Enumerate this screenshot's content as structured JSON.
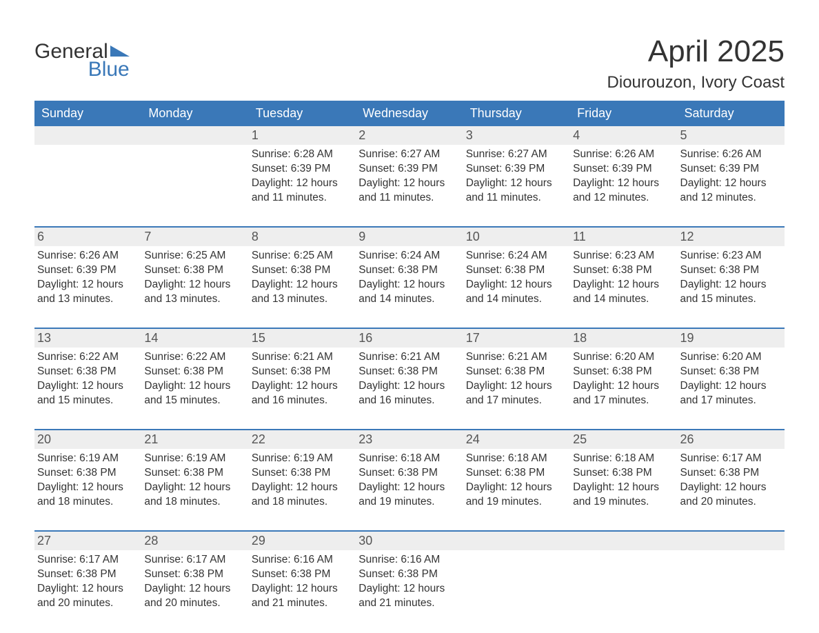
{
  "logo": {
    "text1": "General",
    "text2": "Blue"
  },
  "title": "April 2025",
  "subtitle": "Diourouzon, Ivory Coast",
  "colors": {
    "brand_blue": "#3a78b8",
    "header_text": "#ffffff",
    "daynum_bg": "#eeeeee",
    "body_text": "#333333",
    "daynum_text": "#555555",
    "background": "#ffffff"
  },
  "typography": {
    "title_fontsize": 44,
    "subtitle_fontsize": 24,
    "weekday_fontsize": 18,
    "daynum_fontsize": 18,
    "detail_fontsize": 15.5,
    "logo_fontsize": 30
  },
  "structure": {
    "type": "calendar",
    "columns": 7,
    "rows": 5
  },
  "weekdays": [
    "Sunday",
    "Monday",
    "Tuesday",
    "Wednesday",
    "Thursday",
    "Friday",
    "Saturday"
  ],
  "weeks": [
    {
      "days": [
        {
          "num": "",
          "sunrise": "",
          "sunset": "",
          "daylight": ""
        },
        {
          "num": "",
          "sunrise": "",
          "sunset": "",
          "daylight": ""
        },
        {
          "num": "1",
          "sunrise": "Sunrise: 6:28 AM",
          "sunset": "Sunset: 6:39 PM",
          "daylight": "Daylight: 12 hours and 11 minutes."
        },
        {
          "num": "2",
          "sunrise": "Sunrise: 6:27 AM",
          "sunset": "Sunset: 6:39 PM",
          "daylight": "Daylight: 12 hours and 11 minutes."
        },
        {
          "num": "3",
          "sunrise": "Sunrise: 6:27 AM",
          "sunset": "Sunset: 6:39 PM",
          "daylight": "Daylight: 12 hours and 11 minutes."
        },
        {
          "num": "4",
          "sunrise": "Sunrise: 6:26 AM",
          "sunset": "Sunset: 6:39 PM",
          "daylight": "Daylight: 12 hours and 12 minutes."
        },
        {
          "num": "5",
          "sunrise": "Sunrise: 6:26 AM",
          "sunset": "Sunset: 6:39 PM",
          "daylight": "Daylight: 12 hours and 12 minutes."
        }
      ]
    },
    {
      "days": [
        {
          "num": "6",
          "sunrise": "Sunrise: 6:26 AM",
          "sunset": "Sunset: 6:39 PM",
          "daylight": "Daylight: 12 hours and 13 minutes."
        },
        {
          "num": "7",
          "sunrise": "Sunrise: 6:25 AM",
          "sunset": "Sunset: 6:38 PM",
          "daylight": "Daylight: 12 hours and 13 minutes."
        },
        {
          "num": "8",
          "sunrise": "Sunrise: 6:25 AM",
          "sunset": "Sunset: 6:38 PM",
          "daylight": "Daylight: 12 hours and 13 minutes."
        },
        {
          "num": "9",
          "sunrise": "Sunrise: 6:24 AM",
          "sunset": "Sunset: 6:38 PM",
          "daylight": "Daylight: 12 hours and 14 minutes."
        },
        {
          "num": "10",
          "sunrise": "Sunrise: 6:24 AM",
          "sunset": "Sunset: 6:38 PM",
          "daylight": "Daylight: 12 hours and 14 minutes."
        },
        {
          "num": "11",
          "sunrise": "Sunrise: 6:23 AM",
          "sunset": "Sunset: 6:38 PM",
          "daylight": "Daylight: 12 hours and 14 minutes."
        },
        {
          "num": "12",
          "sunrise": "Sunrise: 6:23 AM",
          "sunset": "Sunset: 6:38 PM",
          "daylight": "Daylight: 12 hours and 15 minutes."
        }
      ]
    },
    {
      "days": [
        {
          "num": "13",
          "sunrise": "Sunrise: 6:22 AM",
          "sunset": "Sunset: 6:38 PM",
          "daylight": "Daylight: 12 hours and 15 minutes."
        },
        {
          "num": "14",
          "sunrise": "Sunrise: 6:22 AM",
          "sunset": "Sunset: 6:38 PM",
          "daylight": "Daylight: 12 hours and 15 minutes."
        },
        {
          "num": "15",
          "sunrise": "Sunrise: 6:21 AM",
          "sunset": "Sunset: 6:38 PM",
          "daylight": "Daylight: 12 hours and 16 minutes."
        },
        {
          "num": "16",
          "sunrise": "Sunrise: 6:21 AM",
          "sunset": "Sunset: 6:38 PM",
          "daylight": "Daylight: 12 hours and 16 minutes."
        },
        {
          "num": "17",
          "sunrise": "Sunrise: 6:21 AM",
          "sunset": "Sunset: 6:38 PM",
          "daylight": "Daylight: 12 hours and 17 minutes."
        },
        {
          "num": "18",
          "sunrise": "Sunrise: 6:20 AM",
          "sunset": "Sunset: 6:38 PM",
          "daylight": "Daylight: 12 hours and 17 minutes."
        },
        {
          "num": "19",
          "sunrise": "Sunrise: 6:20 AM",
          "sunset": "Sunset: 6:38 PM",
          "daylight": "Daylight: 12 hours and 17 minutes."
        }
      ]
    },
    {
      "days": [
        {
          "num": "20",
          "sunrise": "Sunrise: 6:19 AM",
          "sunset": "Sunset: 6:38 PM",
          "daylight": "Daylight: 12 hours and 18 minutes."
        },
        {
          "num": "21",
          "sunrise": "Sunrise: 6:19 AM",
          "sunset": "Sunset: 6:38 PM",
          "daylight": "Daylight: 12 hours and 18 minutes."
        },
        {
          "num": "22",
          "sunrise": "Sunrise: 6:19 AM",
          "sunset": "Sunset: 6:38 PM",
          "daylight": "Daylight: 12 hours and 18 minutes."
        },
        {
          "num": "23",
          "sunrise": "Sunrise: 6:18 AM",
          "sunset": "Sunset: 6:38 PM",
          "daylight": "Daylight: 12 hours and 19 minutes."
        },
        {
          "num": "24",
          "sunrise": "Sunrise: 6:18 AM",
          "sunset": "Sunset: 6:38 PM",
          "daylight": "Daylight: 12 hours and 19 minutes."
        },
        {
          "num": "25",
          "sunrise": "Sunrise: 6:18 AM",
          "sunset": "Sunset: 6:38 PM",
          "daylight": "Daylight: 12 hours and 19 minutes."
        },
        {
          "num": "26",
          "sunrise": "Sunrise: 6:17 AM",
          "sunset": "Sunset: 6:38 PM",
          "daylight": "Daylight: 12 hours and 20 minutes."
        }
      ]
    },
    {
      "days": [
        {
          "num": "27",
          "sunrise": "Sunrise: 6:17 AM",
          "sunset": "Sunset: 6:38 PM",
          "daylight": "Daylight: 12 hours and 20 minutes."
        },
        {
          "num": "28",
          "sunrise": "Sunrise: 6:17 AM",
          "sunset": "Sunset: 6:38 PM",
          "daylight": "Daylight: 12 hours and 20 minutes."
        },
        {
          "num": "29",
          "sunrise": "Sunrise: 6:16 AM",
          "sunset": "Sunset: 6:38 PM",
          "daylight": "Daylight: 12 hours and 21 minutes."
        },
        {
          "num": "30",
          "sunrise": "Sunrise: 6:16 AM",
          "sunset": "Sunset: 6:38 PM",
          "daylight": "Daylight: 12 hours and 21 minutes."
        },
        {
          "num": "",
          "sunrise": "",
          "sunset": "",
          "daylight": ""
        },
        {
          "num": "",
          "sunrise": "",
          "sunset": "",
          "daylight": ""
        },
        {
          "num": "",
          "sunrise": "",
          "sunset": "",
          "daylight": ""
        }
      ]
    }
  ]
}
